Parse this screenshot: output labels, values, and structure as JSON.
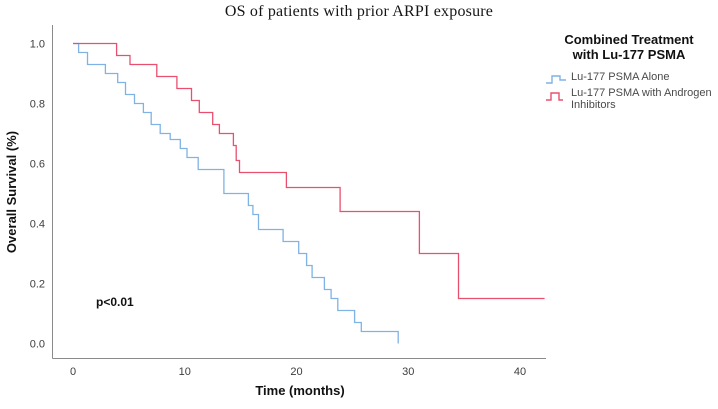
{
  "figure": {
    "title": "OS of patients with prior ARPI exposure",
    "p_value": "p<0.01"
  },
  "axes": {
    "x_title": "Time (months)",
    "y_title": "Overall Survival (%)"
  },
  "legend": {
    "title": "Combined Treatment\nwith Lu-177 PSMA",
    "items": [
      {
        "label": "Lu-177 PSMA Alone",
        "color": "#7FB2E5"
      },
      {
        "label": "Lu-177 PSMA with Androgen Inhibitors",
        "color": "#E9506F"
      }
    ]
  },
  "chart_data": {
    "type": "line",
    "subtype": "kaplan-meier-step",
    "title": "OS of patients with prior ARPI exposure",
    "xlabel": "Time (months)",
    "ylabel": "Overall Survival (%)",
    "annotation": "p<0.01",
    "xlim": [
      0,
      42.5
    ],
    "ylim": [
      0,
      1.0
    ],
    "x_ticks": [
      0,
      10,
      20,
      30,
      40
    ],
    "y_ticks": [
      0,
      0.2,
      0.4,
      0.6,
      0.8,
      1.0
    ],
    "grid": false,
    "legend_position": "right",
    "colors": {
      "axis_line": "#8a8a8a",
      "tick_text": "#3d3d3d"
    },
    "series": [
      {
        "name": "Lu-177 PSMA Alone",
        "color": "#7FB2E5",
        "points": [
          [
            0,
            1.0
          ],
          [
            0.5,
            0.97
          ],
          [
            1.3,
            0.93
          ],
          [
            2.9,
            0.9
          ],
          [
            4.0,
            0.87
          ],
          [
            4.7,
            0.83
          ],
          [
            5.5,
            0.8
          ],
          [
            6.3,
            0.77
          ],
          [
            7.0,
            0.73
          ],
          [
            7.8,
            0.7
          ],
          [
            8.7,
            0.68
          ],
          [
            9.6,
            0.65
          ],
          [
            10.2,
            0.62
          ],
          [
            11.2,
            0.58
          ],
          [
            13.5,
            0.5
          ],
          [
            15.7,
            0.46
          ],
          [
            16.1,
            0.43
          ],
          [
            16.6,
            0.38
          ],
          [
            18.8,
            0.34
          ],
          [
            20.2,
            0.3
          ],
          [
            20.9,
            0.26
          ],
          [
            21.4,
            0.22
          ],
          [
            22.5,
            0.18
          ],
          [
            23.1,
            0.15
          ],
          [
            23.7,
            0.11
          ],
          [
            25.2,
            0.07
          ],
          [
            25.8,
            0.04
          ],
          [
            29.1,
            0.0
          ]
        ]
      },
      {
        "name": "Lu-177 PSMA with Androgen Inhibitors",
        "color": "#E9506F",
        "points": [
          [
            0,
            1.0
          ],
          [
            3.9,
            0.96
          ],
          [
            5.1,
            0.93
          ],
          [
            7.5,
            0.89
          ],
          [
            9.3,
            0.85
          ],
          [
            10.6,
            0.81
          ],
          [
            11.3,
            0.77
          ],
          [
            12.5,
            0.73
          ],
          [
            13.1,
            0.7
          ],
          [
            14.35,
            0.66
          ],
          [
            14.6,
            0.61
          ],
          [
            14.9,
            0.57
          ],
          [
            19.1,
            0.52
          ],
          [
            23.9,
            0.44
          ],
          [
            31.0,
            0.3
          ],
          [
            34.5,
            0.15
          ]
        ],
        "extend_to": 42.2
      }
    ]
  }
}
